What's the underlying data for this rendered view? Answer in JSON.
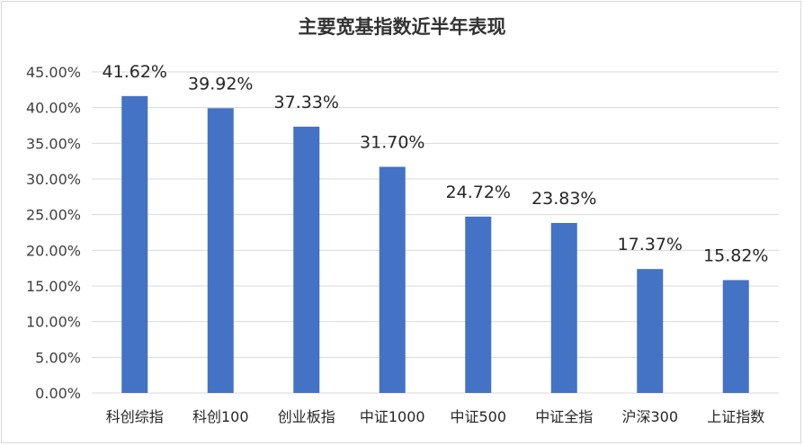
{
  "chart_data": {
    "type": "bar",
    "title": "主要宽基指数近半年表现",
    "categories": [
      "科创综指",
      "科创100",
      "创业板指",
      "中证1000",
      "中证500",
      "中证全指",
      "沪深300",
      "上证指数"
    ],
    "values": [
      41.62,
      39.92,
      37.33,
      31.7,
      24.72,
      23.83,
      17.37,
      15.82
    ],
    "data_labels": [
      "41.62%",
      "39.92%",
      "37.33%",
      "31.70%",
      "24.72%",
      "23.83%",
      "17.37%",
      "15.82%"
    ],
    "y_ticks": [
      "0.00%",
      "5.00%",
      "10.00%",
      "15.00%",
      "20.00%",
      "25.00%",
      "30.00%",
      "35.00%",
      "40.00%",
      "45.00%"
    ],
    "ylim": [
      0,
      45
    ],
    "grid": true,
    "legend": "none",
    "bar_color": "#4472c4",
    "grid_color": "#d9d9d9"
  }
}
